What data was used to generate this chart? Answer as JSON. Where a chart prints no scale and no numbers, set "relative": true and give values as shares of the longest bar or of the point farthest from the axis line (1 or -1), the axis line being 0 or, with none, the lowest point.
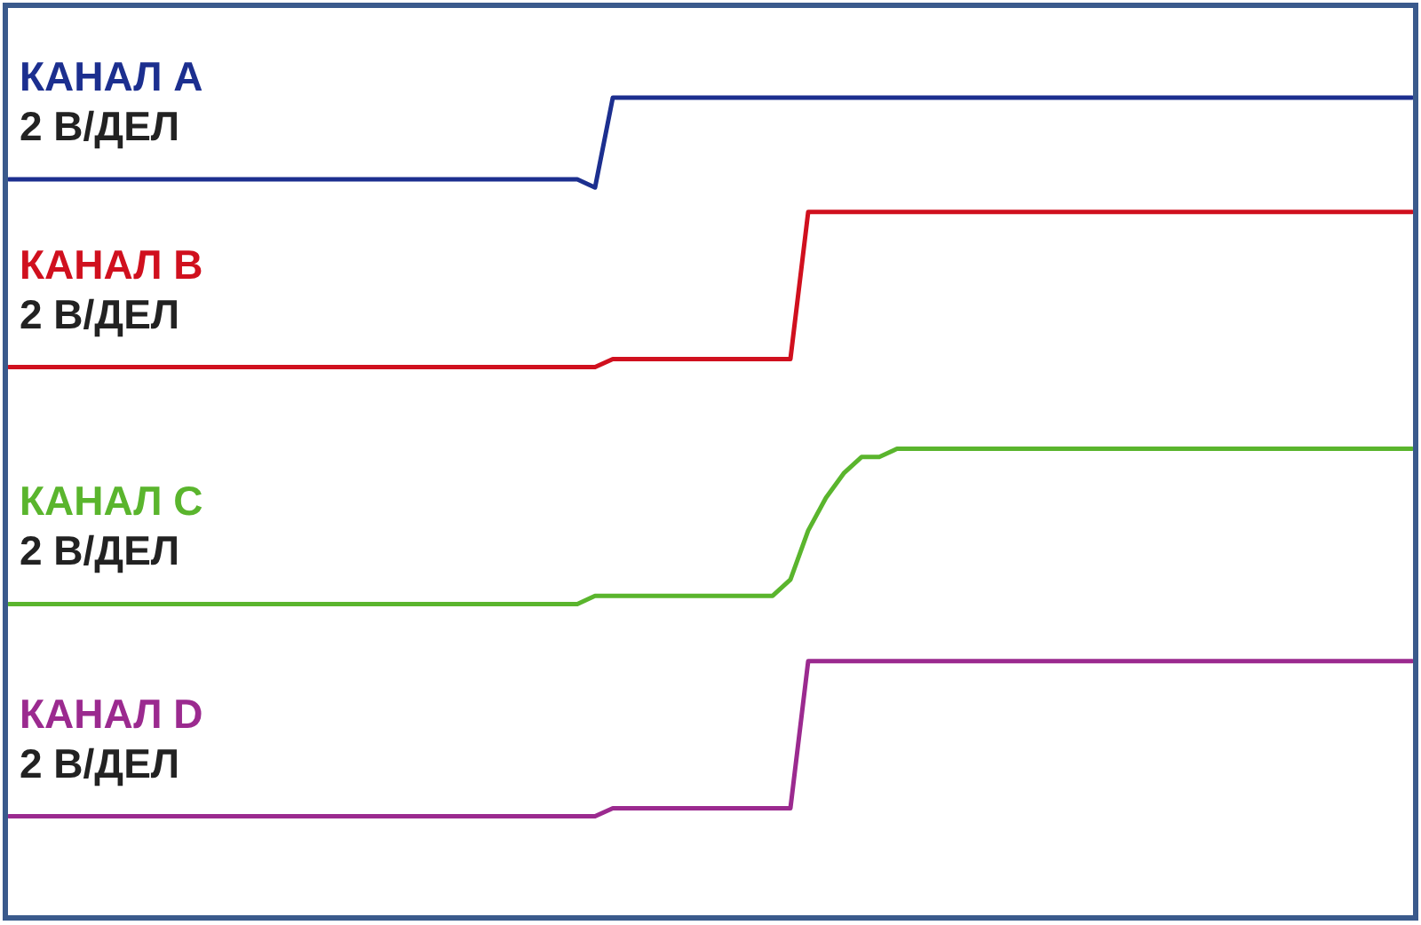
{
  "chart_data": {
    "type": "line",
    "relative": true,
    "legend": false,
    "marker": "none",
    "line_style": "solid",
    "categories": [
      null,
      null,
      null,
      null,
      null,
      null,
      null,
      null,
      null,
      null,
      null,
      null,
      null,
      null,
      null,
      null,
      null,
      null,
      null,
      null,
      null,
      null,
      null,
      null,
      null,
      null,
      null,
      null,
      null,
      null,
      null,
      null,
      null,
      null,
      null,
      null,
      null,
      null,
      null,
      null,
      null,
      null,
      null,
      null,
      null,
      null,
      null,
      null,
      null,
      null,
      null,
      null,
      null,
      null,
      null,
      null,
      null,
      null,
      null,
      null,
      null,
      null,
      null,
      null,
      null,
      null,
      null,
      null,
      null,
      null,
      null,
      null,
      null,
      null,
      null,
      null,
      null,
      null,
      null,
      null
    ],
    "series": [
      {
        "name": "КАНАЛ A",
        "color": "#1c2f8f",
        "values": [
          0.9,
          0.9,
          0.9,
          0.9,
          0.9,
          0.9,
          0.9,
          0.9,
          0.9,
          0.9,
          0.9,
          0.9,
          0.9,
          0.9,
          0.9,
          0.9,
          0.9,
          0.9,
          0.9,
          0.9,
          0.9,
          0.9,
          0.9,
          0.9,
          0.9,
          0.9,
          0.9,
          0.9,
          0.9,
          0.9,
          0.9,
          0.9,
          0.9,
          0.89,
          1,
          1,
          1,
          1,
          1,
          1,
          1,
          1,
          1,
          1,
          1,
          1,
          1,
          1,
          1,
          1,
          1,
          1,
          1,
          1,
          1,
          1,
          1,
          1,
          1,
          1,
          1,
          1,
          1,
          1,
          1,
          1,
          1,
          1,
          1,
          1,
          1,
          1,
          1,
          1,
          1,
          1,
          1,
          1,
          1,
          1
        ]
      },
      {
        "name": "КАНАЛ B",
        "color": "#d0101e",
        "values": [
          0.67,
          0.67,
          0.67,
          0.67,
          0.67,
          0.67,
          0.67,
          0.67,
          0.67,
          0.67,
          0.67,
          0.67,
          0.67,
          0.67,
          0.67,
          0.67,
          0.67,
          0.67,
          0.67,
          0.67,
          0.67,
          0.67,
          0.67,
          0.67,
          0.67,
          0.67,
          0.67,
          0.67,
          0.67,
          0.67,
          0.67,
          0.67,
          0.67,
          0.67,
          0.68,
          0.68,
          0.68,
          0.68,
          0.68,
          0.68,
          0.68,
          0.68,
          0.68,
          0.68,
          0.68,
          0.86,
          0.86,
          0.86,
          0.86,
          0.86,
          0.86,
          0.86,
          0.86,
          0.86,
          0.86,
          0.86,
          0.86,
          0.86,
          0.86,
          0.86,
          0.86,
          0.86,
          0.86,
          0.86,
          0.86,
          0.86,
          0.86,
          0.86,
          0.86,
          0.86,
          0.86,
          0.86,
          0.86,
          0.86,
          0.86,
          0.86,
          0.86,
          0.86,
          0.86,
          0.86
        ]
      },
      {
        "name": "КАНАЛ C",
        "color": "#5ab52d",
        "values": [
          0.38,
          0.38,
          0.38,
          0.38,
          0.38,
          0.38,
          0.38,
          0.38,
          0.38,
          0.38,
          0.38,
          0.38,
          0.38,
          0.38,
          0.38,
          0.38,
          0.38,
          0.38,
          0.38,
          0.38,
          0.38,
          0.38,
          0.38,
          0.38,
          0.38,
          0.38,
          0.38,
          0.38,
          0.38,
          0.38,
          0.38,
          0.38,
          0.38,
          0.39,
          0.39,
          0.39,
          0.39,
          0.39,
          0.39,
          0.39,
          0.39,
          0.39,
          0.39,
          0.39,
          0.41,
          0.47,
          0.51,
          0.54,
          0.56,
          0.56,
          0.57,
          0.57,
          0.57,
          0.57,
          0.57,
          0.57,
          0.57,
          0.57,
          0.57,
          0.57,
          0.57,
          0.57,
          0.57,
          0.57,
          0.57,
          0.57,
          0.57,
          0.57,
          0.57,
          0.57,
          0.57,
          0.57,
          0.57,
          0.57,
          0.57,
          0.57,
          0.57,
          0.57,
          0.57,
          0.57
        ]
      },
      {
        "name": "КАНАЛ D",
        "color": "#9b2a8f",
        "values": [
          0.12,
          0.12,
          0.12,
          0.12,
          0.12,
          0.12,
          0.12,
          0.12,
          0.12,
          0.12,
          0.12,
          0.12,
          0.12,
          0.12,
          0.12,
          0.12,
          0.12,
          0.12,
          0.12,
          0.12,
          0.12,
          0.12,
          0.12,
          0.12,
          0.12,
          0.12,
          0.12,
          0.12,
          0.12,
          0.12,
          0.12,
          0.12,
          0.12,
          0.12,
          0.13,
          0.13,
          0.13,
          0.13,
          0.13,
          0.13,
          0.13,
          0.13,
          0.13,
          0.13,
          0.13,
          0.31,
          0.31,
          0.31,
          0.31,
          0.31,
          0.31,
          0.31,
          0.31,
          0.31,
          0.31,
          0.31,
          0.31,
          0.31,
          0.31,
          0.31,
          0.31,
          0.31,
          0.31,
          0.31,
          0.31,
          0.31,
          0.31,
          0.31,
          0.31,
          0.31,
          0.31,
          0.31,
          0.31,
          0.31,
          0.31,
          0.31,
          0.31,
          0.31,
          0.31,
          0.31
        ]
      }
    ],
    "annotations": [
      "2 В/ДЕЛ",
      "2 В/ДЕЛ",
      "2 В/ДЕЛ",
      "2 В/ДЕЛ"
    ]
  }
}
